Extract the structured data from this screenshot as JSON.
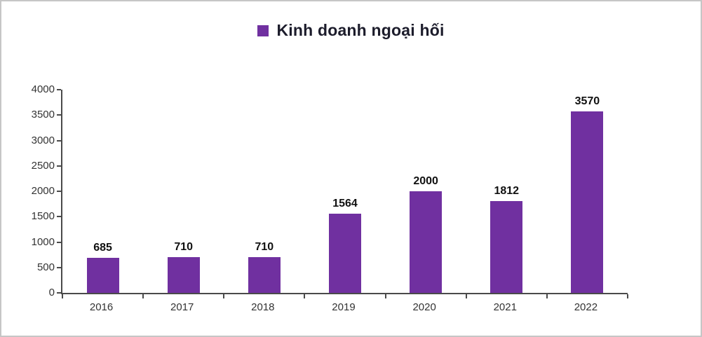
{
  "chart_data": {
    "type": "bar",
    "title": "Kinh doanh ngoại hối",
    "categories": [
      "2016",
      "2017",
      "2018",
      "2019",
      "2020",
      "2021",
      "2022"
    ],
    "values": [
      685,
      710,
      710,
      1564,
      2000,
      1812,
      3570
    ],
    "xlabel": "",
    "ylabel": "",
    "ylim": [
      0,
      4000
    ],
    "y_ticks": [
      0,
      500,
      1000,
      1500,
      2000,
      2500,
      3000,
      3500,
      4000
    ],
    "bar_color": "#7030A0",
    "grid": false,
    "legend_position": "top",
    "data_labels": true
  }
}
